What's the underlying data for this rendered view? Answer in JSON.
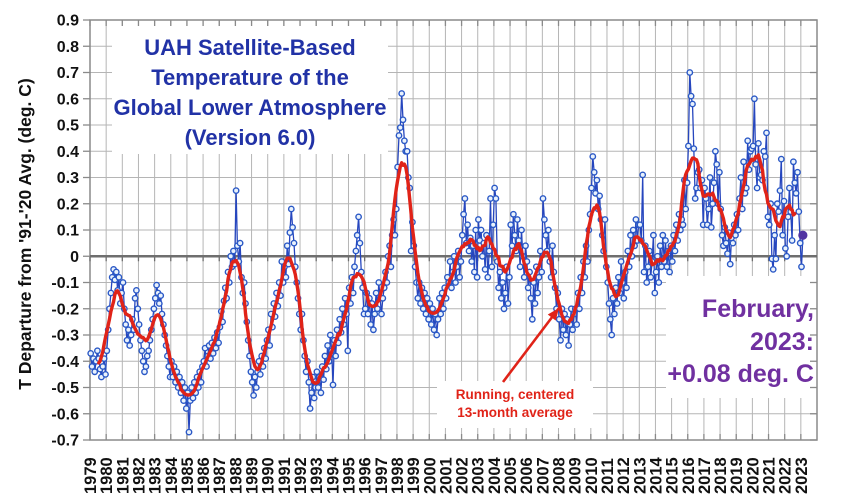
{
  "chart": {
    "title_lines": [
      "UAH Satellite-Based",
      "Temperature of the",
      "Global Lower Atmosphere",
      "(Version 6.0)"
    ],
    "title_color": "#2132a6",
    "y_axis_title": "T Departure from '91-'20 Avg. (deg. C)",
    "latest_annotation": {
      "line1": "February,",
      "line2": "2023:",
      "line3": "+0.08 deg. C",
      "color": "#7030A0"
    },
    "smoother_annotation": {
      "line1": "Running, centered",
      "line2": "13-month average",
      "color": "#e02318"
    }
  },
  "chart_data": {
    "type": "line",
    "title": "UAH Satellite-Based Temperature of the Global Lower Atmosphere (Version 6.0)",
    "ylabel": "T Departure from '91-'20 Avg. (deg. C)",
    "ylim": [
      -0.7,
      0.9
    ],
    "y_tick_step": 0.1,
    "y_tick_labels": [
      "0.9",
      "0.8",
      "0.7",
      "0.6",
      "0.5",
      "0.4",
      "0.3",
      "0.2",
      "0.1",
      "0",
      "-0.1",
      "-0.2",
      "-0.3",
      "-0.4",
      "-0.5",
      "-0.6",
      "-0.7"
    ],
    "x_range": [
      1979,
      2024
    ],
    "x_tick_labels": [
      "1979",
      "1980",
      "1981",
      "1982",
      "1983",
      "1984",
      "1985",
      "1986",
      "1987",
      "1988",
      "1989",
      "1990",
      "1991",
      "1992",
      "1993",
      "1994",
      "1995",
      "1996",
      "1997",
      "1998",
      "1999",
      "2000",
      "2001",
      "2002",
      "2003",
      "2004",
      "2005",
      "2006",
      "2007",
      "2008",
      "2009",
      "2010",
      "2011",
      "2012",
      "2013",
      "2014",
      "2015",
      "2016",
      "2017",
      "2018",
      "2019",
      "2020",
      "2021",
      "2022",
      "2023"
    ],
    "grid": true,
    "zero_line": true,
    "colors": {
      "monthly_line": "#2646be",
      "marker_ring": "#2a58c6",
      "marker_fill": "#e9f2fc",
      "smoothed_line": "#e02318",
      "latest_point": "#5134a2",
      "gridline": "#b5b5b5",
      "zero_axis": "#6e6e6e",
      "border": "#8a8a8a"
    },
    "series": [
      {
        "name": "Monthly global lower-atmosphere temperature anomaly",
        "style": "line-with-open-circle-markers",
        "start_year": 1979,
        "start_month": 1,
        "monthly_values": [
          -0.37,
          -0.42,
          -0.39,
          -0.44,
          -0.4,
          -0.36,
          -0.39,
          -0.43,
          -0.46,
          -0.42,
          -0.39,
          -0.45,
          -0.36,
          -0.28,
          -0.2,
          -0.14,
          -0.08,
          -0.05,
          -0.09,
          -0.06,
          -0.13,
          -0.08,
          -0.18,
          -0.14,
          -0.1,
          -0.2,
          -0.26,
          -0.32,
          -0.28,
          -0.34,
          -0.3,
          -0.24,
          -0.28,
          -0.16,
          -0.13,
          -0.2,
          -0.26,
          -0.32,
          -0.36,
          -0.4,
          -0.44,
          -0.42,
          -0.38,
          -0.36,
          -0.32,
          -0.28,
          -0.24,
          -0.2,
          -0.16,
          -0.11,
          -0.14,
          -0.18,
          -0.15,
          -0.22,
          -0.26,
          -0.3,
          -0.34,
          -0.38,
          -0.42,
          -0.46,
          -0.4,
          -0.46,
          -0.42,
          -0.48,
          -0.44,
          -0.5,
          -0.46,
          -0.52,
          -0.48,
          -0.55,
          -0.5,
          -0.58,
          -0.52,
          -0.67,
          -0.55,
          -0.5,
          -0.54,
          -0.48,
          -0.52,
          -0.46,
          -0.5,
          -0.44,
          -0.48,
          -0.42,
          -0.4,
          -0.35,
          -0.42,
          -0.38,
          -0.34,
          -0.39,
          -0.33,
          -0.37,
          -0.31,
          -0.35,
          -0.29,
          -0.33,
          -0.27,
          -0.21,
          -0.25,
          -0.17,
          -0.12,
          -0.16,
          -0.06,
          -0.1,
          0.0,
          -0.04,
          0.02,
          -0.03,
          0.25,
          0.04,
          -0.02,
          0.05,
          -0.08,
          -0.14,
          -0.1,
          -0.18,
          -0.25,
          -0.32,
          -0.38,
          -0.44,
          -0.48,
          -0.53,
          -0.46,
          -0.5,
          -0.44,
          -0.4,
          -0.45,
          -0.38,
          -0.42,
          -0.35,
          -0.39,
          -0.32,
          -0.28,
          -0.34,
          -0.22,
          -0.27,
          -0.18,
          -0.23,
          -0.14,
          -0.19,
          -0.1,
          -0.15,
          -0.02,
          -0.1,
          -0.04,
          -0.08,
          0.04,
          -0.03,
          0.09,
          0.18,
          0.11,
          0.05,
          -0.04,
          -0.1,
          -0.16,
          -0.22,
          -0.28,
          -0.22,
          -0.32,
          -0.38,
          -0.44,
          -0.4,
          -0.48,
          -0.58,
          -0.52,
          -0.46,
          -0.54,
          -0.5,
          -0.44,
          -0.5,
          -0.46,
          -0.52,
          -0.42,
          -0.47,
          -0.38,
          -0.43,
          -0.34,
          -0.4,
          -0.3,
          -0.36,
          -0.49,
          -0.32,
          -0.38,
          -0.28,
          -0.33,
          -0.24,
          -0.29,
          -0.2,
          -0.26,
          -0.16,
          -0.22,
          -0.36,
          -0.12,
          -0.18,
          -0.08,
          -0.14,
          -0.04,
          0.02,
          0.08,
          0.15,
          0.05,
          -0.06,
          -0.12,
          -0.22,
          -0.2,
          -0.14,
          -0.22,
          -0.16,
          -0.26,
          -0.18,
          -0.28,
          -0.22,
          -0.14,
          -0.2,
          -0.1,
          -0.16,
          -0.22,
          -0.16,
          -0.12,
          -0.06,
          -0.1,
          0.0,
          0.04,
          -0.04,
          0.08,
          0.14,
          0.08,
          0.18,
          0.34,
          0.46,
          0.49,
          0.62,
          0.52,
          0.44,
          0.4,
          0.4,
          0.3,
          0.26,
          0.02,
          0.13,
          0.04,
          -0.04,
          -0.1,
          -0.16,
          -0.1,
          -0.18,
          -0.12,
          -0.2,
          -0.14,
          -0.22,
          -0.16,
          -0.24,
          -0.18,
          -0.26,
          -0.2,
          -0.28,
          -0.22,
          -0.3,
          -0.24,
          -0.16,
          -0.22,
          -0.14,
          -0.2,
          -0.12,
          -0.16,
          -0.08,
          -0.1,
          -0.02,
          -0.12,
          -0.06,
          0.0,
          -0.1,
          -0.04,
          0.02,
          -0.08,
          -0.02,
          0.08,
          0.16,
          0.22,
          0.05,
          0.12,
          0.02,
          0.07,
          -0.02,
          0.04,
          -0.06,
          0.1,
          -0.08,
          0.14,
          0.06,
          0.1,
          0.0,
          0.05,
          -0.05,
          0.08,
          -0.08,
          0.02,
          0.22,
          -0.04,
          0.12,
          0.26,
          0.22,
          -0.02,
          -0.12,
          -0.06,
          -0.16,
          -0.1,
          -0.2,
          -0.14,
          -0.04,
          -0.18,
          -0.08,
          0.12,
          0.04,
          0.16,
          0.08,
          0.02,
          0.14,
          0.06,
          -0.04,
          0.1,
          0.0,
          -0.08,
          0.04,
          -0.02,
          -0.12,
          -0.06,
          -0.16,
          -0.24,
          -0.1,
          -0.18,
          -0.04,
          -0.14,
          -0.08,
          0.02,
          -0.06,
          0.22,
          0.14,
          0.08,
          0.02,
          0.1,
          -0.02,
          -0.08,
          0.04,
          -0.06,
          -0.12,
          -0.2,
          -0.14,
          -0.24,
          -0.32,
          -0.2,
          -0.28,
          -0.22,
          -0.3,
          -0.24,
          -0.34,
          -0.26,
          -0.2,
          -0.28,
          -0.22,
          -0.2,
          -0.26,
          -0.14,
          -0.2,
          -0.08,
          -0.14,
          -0.02,
          -0.08,
          0.04,
          -0.02,
          0.1,
          0.16,
          0.26,
          0.38,
          0.32,
          0.24,
          0.29,
          0.18,
          0.23,
          0.14,
          0.08,
          0.02,
          0.14,
          -0.04,
          -0.1,
          -0.18,
          -0.24,
          -0.3,
          -0.16,
          -0.22,
          -0.12,
          -0.18,
          -0.08,
          -0.14,
          -0.02,
          -0.1,
          -0.16,
          -0.06,
          -0.12,
          0.02,
          -0.04,
          0.08,
          0.0,
          0.1,
          0.04,
          0.14,
          0.06,
          0.12,
          0.12,
          0.06,
          0.31,
          -0.06,
          0.04,
          -0.1,
          -0.04,
          0.02,
          -0.08,
          -0.02,
          0.08,
          -0.14,
          -0.06,
          0.0,
          -0.1,
          0.04,
          -0.04,
          0.08,
          -0.02,
          0.06,
          -0.04,
          0.02,
          -0.06,
          0.04,
          -0.02,
          0.08,
          0.02,
          0.12,
          0.06,
          0.16,
          0.1,
          0.14,
          0.12,
          0.29,
          0.18,
          0.28,
          0.42,
          0.7,
          0.61,
          0.58,
          0.41,
          0.22,
          0.26,
          0.32,
          0.33,
          0.26,
          0.29,
          0.12,
          0.26,
          0.22,
          0.12,
          0.18,
          0.3,
          0.11,
          0.2,
          0.28,
          0.4,
          0.35,
          0.2,
          0.32,
          0.18,
          0.08,
          0.04,
          0.11,
          0.05,
          0.01,
          0.09,
          -0.03,
          0.07,
          0.05,
          0.12,
          0.08,
          0.16,
          0.1,
          0.22,
          0.3,
          0.18,
          0.36,
          0.24,
          0.26,
          0.44,
          0.33,
          0.4,
          0.41,
          0.42,
          0.6,
          0.35,
          0.26,
          0.43,
          0.3,
          0.31,
          0.29,
          0.4,
          0.38,
          0.47,
          0.15,
          0.12,
          0.2,
          -0.01,
          -0.05,
          0.08,
          -0.01,
          0.2,
          0.17,
          0.25,
          0.37,
          0.08,
          0.21,
          0.03,
          0.0,
          0.15,
          0.26,
          0.17,
          0.06,
          0.36,
          0.28,
          0.24,
          0.32,
          0.17,
          0.05,
          -0.04,
          0.08
        ]
      },
      {
        "name": "Running, centered 13-month average",
        "style": "thick-line",
        "derived_from": "monthly_values",
        "smoothing_window_months": 13
      },
      {
        "name": "Latest month highlighted point",
        "style": "filled-dot",
        "x": 2023.125,
        "value": 0.08,
        "label": "February 2023: +0.08 deg. C"
      }
    ]
  }
}
